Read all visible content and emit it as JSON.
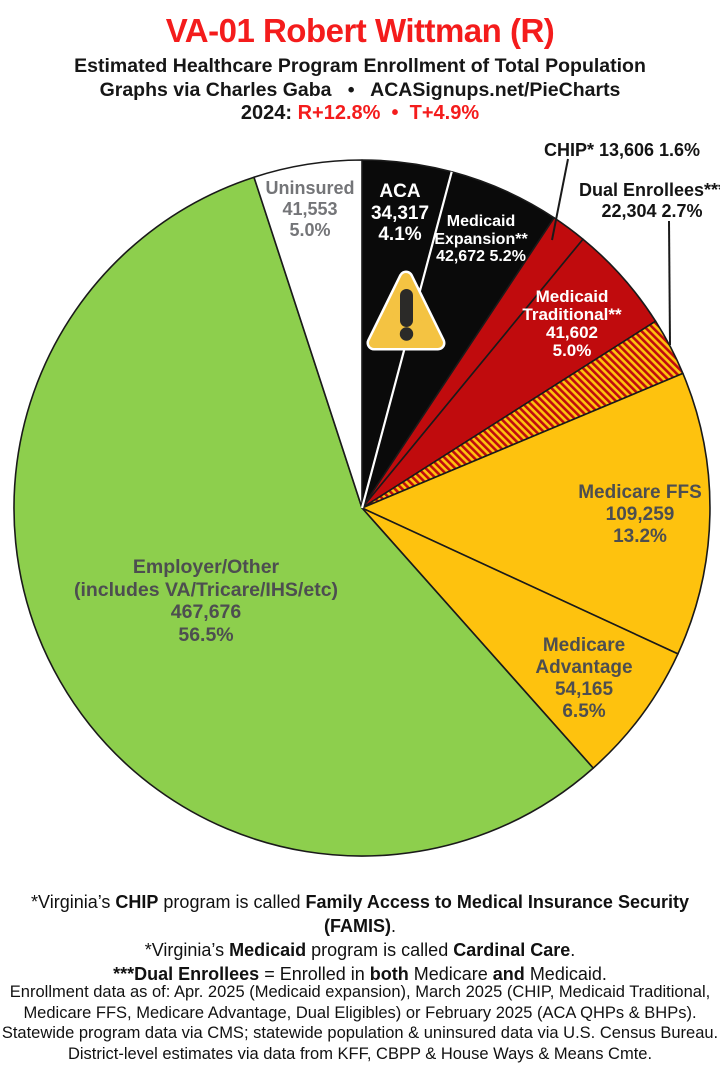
{
  "header": {
    "title": "VA-01 Robert Wittman (R)",
    "title_color": "#f41c1c",
    "subtitle": "Estimated Healthcare Program Enrollment of Total Population",
    "credit": "Graphs via Charles Gaba   •   ACASignups.net/PieCharts",
    "lean_segments": [
      "2024: ",
      "R+12.8%",
      "  •  ",
      "T+4.9%"
    ],
    "lean_accent_color": "#f41c1c"
  },
  "icons": {
    "warning_triangle": "⚠"
  },
  "chart_data": {
    "type": "pie",
    "title": "VA-01 Robert Wittman (R)",
    "subtitle": "Estimated Healthcare Program Enrollment of Total Population",
    "start_angle_deg": 0,
    "direction": "clockwise",
    "hatch": {
      "bg": "#fec20e",
      "stripe": "#c00b0d"
    },
    "slices": [
      {
        "id": "aca",
        "name": "ACA",
        "value": 34317,
        "pct": "4.1%",
        "color": "#0a0a0a",
        "label_lines": [
          "ACA",
          "34,317",
          "4.1%"
        ]
      },
      {
        "id": "medicaid-expansion",
        "name": "Medicaid Expansion**",
        "value": 42672,
        "pct": "5.2%",
        "color": "#0a0a0a",
        "label_lines": [
          "Medicaid",
          "Expansion**",
          "42,672 5.2%"
        ]
      },
      {
        "id": "chip",
        "name": "CHIP*",
        "value": 13606,
        "pct": "1.6%",
        "color": "#c00b0d",
        "callout": "CHIP* 13,606 1.6%"
      },
      {
        "id": "medicaid-traditional",
        "name": "Medicaid Traditional**",
        "value": 41602,
        "pct": "5.0%",
        "color": "#c00b0d",
        "label_lines": [
          "Medicaid",
          "Traditional**",
          "41,602",
          "5.0%"
        ]
      },
      {
        "id": "dual-enrollees",
        "name": "Dual Enrollees***",
        "value": 22304,
        "pct": "2.7%",
        "hatch": true,
        "callout_lines": [
          "Dual Enrollees***",
          "22,304 2.7%"
        ]
      },
      {
        "id": "medicare-ffs",
        "name": "Medicare FFS",
        "value": 109259,
        "pct": "13.2%",
        "color": "#fec20e",
        "label_lines": [
          "Medicare FFS",
          "109,259",
          "13.2%"
        ]
      },
      {
        "id": "medicare-advantage",
        "name": "Medicare Advantage",
        "value": 54165,
        "pct": "6.5%",
        "color": "#fec20e",
        "label_lines": [
          "Medicare",
          "Advantage",
          "54,165",
          "6.5%"
        ]
      },
      {
        "id": "employer-other",
        "name": "Employer/Other",
        "value": 467676,
        "pct": "56.5%",
        "color": "#8dcf4d",
        "label_lines": [
          "Employer/Other",
          "(includes VA/Tricare/IHS/etc)",
          "467,676",
          "56.5%"
        ]
      },
      {
        "id": "uninsured",
        "name": "Uninsured",
        "value": 41553,
        "pct": "5.0%",
        "color": "#ffffff",
        "label_lines": [
          "Uninsured",
          "41,553",
          "5.0%"
        ]
      }
    ]
  },
  "footnotes": {
    "line1": [
      "*Virginia’s ",
      "CHIP",
      " program is called ",
      "Family Access to Medical Insurance Security (FAMIS)",
      "."
    ],
    "line2": [
      "*Virginia’s ",
      "Medicaid",
      " program is called ",
      "Cardinal Care",
      "."
    ],
    "line3": [
      "***Dual Enrollees",
      " = Enrolled in ",
      "both",
      " Medicare ",
      "and",
      " Medicaid."
    ]
  },
  "sources": {
    "lines": [
      "Enrollment data as of: Apr. 2025 (Medicaid expansion), March 2025 (CHIP, Medicaid Traditional,",
      "Medicare FFS, Medicare Advantage, Dual Eligibles) or February 2025 (ACA QHPs & BHPs).",
      "Statewide program data via CMS; statewide population & uninsured data via U.S. Census Bureau.",
      "District-level estimates via data from KFF, CBPP & House Ways & Means Cmte."
    ]
  }
}
